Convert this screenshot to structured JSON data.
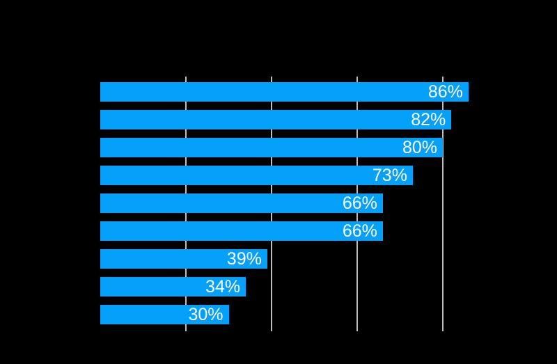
{
  "page": {
    "background_color": "#000000"
  },
  "chart_data": {
    "type": "bar",
    "orientation": "horizontal",
    "values": [
      86,
      82,
      80,
      73,
      66,
      66,
      39,
      34,
      30
    ],
    "data_labels": [
      "86%",
      "82%",
      "80%",
      "73%",
      "66%",
      "66%",
      "39%",
      "34%",
      "30%"
    ],
    "xlim": [
      0,
      100
    ],
    "x_ticks": [
      20,
      40,
      60,
      80
    ],
    "grid": true,
    "legend": false,
    "colors": {
      "bar": "#05A0FA",
      "gridline": "#BDBDBD",
      "data_label": "#FFFFFF",
      "background": "#000000"
    },
    "layout_hints": {
      "bars_drawn_over_gridlines": true,
      "data_labels_inside_bar_right_aligned": true
    }
  }
}
